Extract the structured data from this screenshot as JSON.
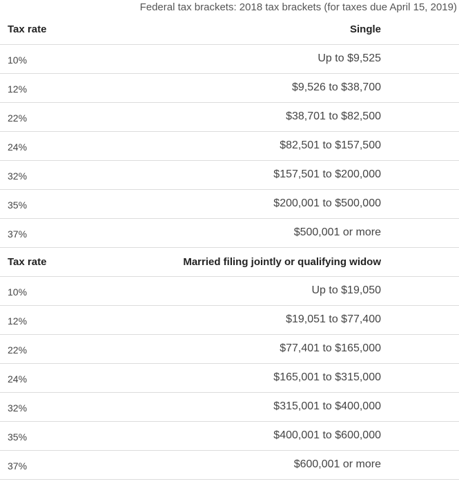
{
  "caption": "Federal tax brackets: 2018 tax brackets (for taxes due April 15, 2019)",
  "sections": [
    {
      "header": {
        "rate": "Tax rate",
        "status": "Single"
      },
      "rows": [
        {
          "rate": "10%",
          "range": "Up to $9,525"
        },
        {
          "rate": "12%",
          "range": "$9,526 to $38,700"
        },
        {
          "rate": "22%",
          "range": "$38,701 to $82,500"
        },
        {
          "rate": "24%",
          "range": "$82,501 to $157,500"
        },
        {
          "rate": "32%",
          "range": "$157,501 to $200,000"
        },
        {
          "rate": "35%",
          "range": "$200,001 to $500,000"
        },
        {
          "rate": "37%",
          "range": "$500,001 or more"
        }
      ]
    },
    {
      "header": {
        "rate": "Tax rate",
        "status": "Married filing jointly or qualifying widow"
      },
      "rows": [
        {
          "rate": "10%",
          "range": "Up to $19,050"
        },
        {
          "rate": "12%",
          "range": "$19,051 to $77,400"
        },
        {
          "rate": "22%",
          "range": "$77,401 to $165,000"
        },
        {
          "rate": "24%",
          "range": "$165,001 to $315,000"
        },
        {
          "rate": "32%",
          "range": "$315,001 to $400,000"
        },
        {
          "rate": "35%",
          "range": "$400,001 to $600,000"
        },
        {
          "rate": "37%",
          "range": "$600,001 or more"
        }
      ]
    }
  ]
}
